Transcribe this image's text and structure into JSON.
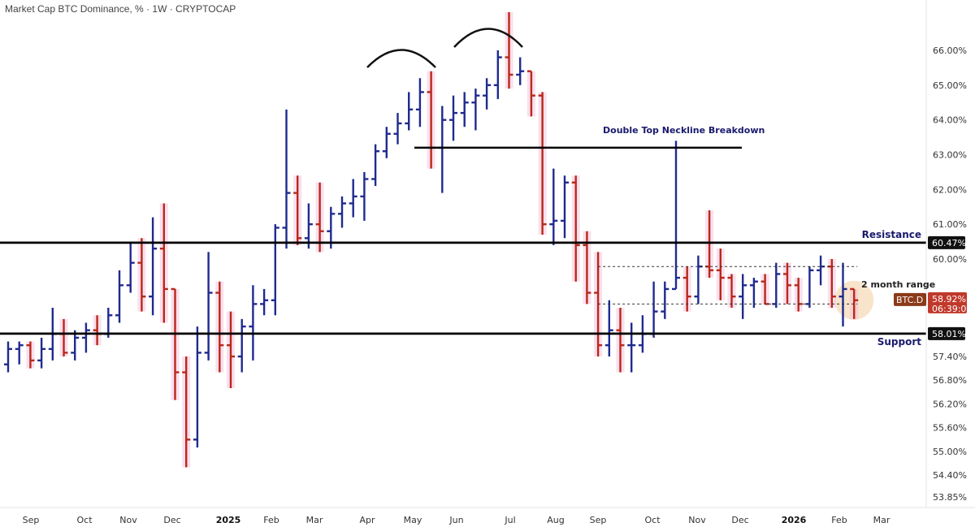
{
  "header": {
    "title": "Market Cap BTC Dominance, % · 1W · CRYPTOCAP",
    "unit_button": "%"
  },
  "colors": {
    "up": "#1f2a8f",
    "down": "#b8281a",
    "down_glow": "#f4b8d8",
    "level_line": "#000000",
    "annot_text": "#1a1a6e",
    "current_bg": "#c0392b",
    "symbol_bg": "#8b3a1a",
    "highlight": "#f5d9b5"
  },
  "chart_data": {
    "type": "ohlc",
    "title": "Market Cap BTC Dominance, % · 1W · CRYPTOCAP",
    "y_unit": "%",
    "ylim": [
      53.6,
      66.6
    ],
    "y_ticks": [
      "66.00%",
      "65.00%",
      "64.00%",
      "63.00%",
      "62.00%",
      "61.00%",
      "60.00%",
      "57.40%",
      "56.80%",
      "56.20%",
      "55.60%",
      "55.00%",
      "54.40%",
      "53.85%"
    ],
    "x_ticks": [
      {
        "label": "Sep",
        "bold": false
      },
      {
        "label": "Oct",
        "bold": false
      },
      {
        "label": "Nov",
        "bold": false
      },
      {
        "label": "Dec",
        "bold": false
      },
      {
        "label": "2025",
        "bold": true
      },
      {
        "label": "Feb",
        "bold": false
      },
      {
        "label": "Mar",
        "bold": false
      },
      {
        "label": "Apr",
        "bold": false
      },
      {
        "label": "May",
        "bold": false
      },
      {
        "label": "Jun",
        "bold": false
      },
      {
        "label": "Jul",
        "bold": false
      },
      {
        "label": "Aug",
        "bold": false
      },
      {
        "label": "Sep",
        "bold": false
      },
      {
        "label": "Oct",
        "bold": false
      },
      {
        "label": "Nov",
        "bold": false
      },
      {
        "label": "Dec",
        "bold": false
      },
      {
        "label": "2026",
        "bold": true
      },
      {
        "label": "Feb",
        "bold": false
      },
      {
        "label": "Mar",
        "bold": false
      }
    ],
    "bars": [
      [
        57.2,
        57.8,
        57.0,
        57.6
      ],
      [
        57.6,
        57.8,
        57.2,
        57.7
      ],
      [
        57.7,
        57.8,
        57.1,
        57.3
      ],
      [
        57.3,
        57.9,
        57.1,
        57.6
      ],
      [
        57.6,
        58.7,
        57.3,
        58.0
      ],
      [
        58.0,
        58.4,
        57.4,
        57.5
      ],
      [
        57.5,
        58.1,
        57.3,
        57.9
      ],
      [
        57.9,
        58.3,
        57.5,
        58.1
      ],
      [
        58.1,
        58.5,
        57.7,
        58.0
      ],
      [
        58.0,
        58.7,
        57.9,
        58.5
      ],
      [
        58.5,
        59.7,
        58.3,
        59.3
      ],
      [
        59.3,
        60.5,
        59.1,
        59.9
      ],
      [
        59.9,
        60.6,
        58.6,
        59.0
      ],
      [
        59.0,
        61.2,
        58.5,
        60.3
      ],
      [
        60.3,
        61.6,
        58.3,
        59.2
      ],
      [
        59.2,
        59.2,
        56.3,
        57.0
      ],
      [
        57.0,
        57.4,
        54.6,
        55.3
      ],
      [
        55.3,
        58.2,
        55.1,
        57.5
      ],
      [
        57.5,
        60.2,
        57.3,
        59.1
      ],
      [
        59.1,
        59.4,
        57.0,
        57.7
      ],
      [
        57.7,
        58.6,
        56.6,
        57.4
      ],
      [
        57.4,
        58.4,
        57.0,
        58.2
      ],
      [
        58.2,
        59.3,
        57.3,
        58.8
      ],
      [
        58.8,
        59.2,
        58.5,
        58.9
      ],
      [
        58.9,
        61.0,
        58.5,
        60.9
      ],
      [
        60.9,
        64.3,
        60.3,
        61.9
      ],
      [
        61.9,
        62.4,
        60.4,
        60.6
      ],
      [
        60.6,
        61.6,
        60.3,
        61.0
      ],
      [
        61.0,
        62.2,
        60.2,
        60.8
      ],
      [
        60.8,
        61.5,
        60.3,
        61.3
      ],
      [
        61.3,
        61.8,
        60.9,
        61.6
      ],
      [
        61.6,
        62.3,
        61.2,
        61.8
      ],
      [
        61.8,
        62.5,
        61.1,
        62.3
      ],
      [
        62.3,
        63.3,
        62.1,
        63.1
      ],
      [
        63.1,
        63.8,
        62.9,
        63.6
      ],
      [
        63.6,
        64.2,
        63.3,
        63.9
      ],
      [
        63.9,
        64.8,
        63.7,
        64.3
      ],
      [
        64.3,
        65.2,
        63.8,
        64.8
      ],
      [
        64.8,
        65.4,
        62.6,
        63.2
      ],
      [
        63.2,
        64.4,
        61.9,
        64.0
      ],
      [
        64.0,
        64.7,
        63.4,
        64.2
      ],
      [
        64.2,
        64.8,
        63.8,
        64.5
      ],
      [
        64.5,
        64.9,
        63.7,
        64.7
      ],
      [
        64.7,
        65.2,
        64.3,
        65.0
      ],
      [
        65.0,
        66.0,
        64.6,
        65.8
      ],
      [
        65.8,
        66.1,
        64.9,
        65.3
      ],
      [
        65.3,
        65.8,
        65.0,
        65.4
      ],
      [
        65.4,
        65.4,
        64.1,
        64.7
      ],
      [
        64.7,
        64.8,
        60.7,
        61.0
      ],
      [
        61.0,
        62.6,
        60.4,
        61.1
      ],
      [
        61.1,
        62.4,
        60.6,
        62.2
      ],
      [
        62.2,
        62.4,
        59.4,
        60.4
      ],
      [
        60.4,
        60.8,
        58.8,
        59.1
      ],
      [
        59.1,
        60.2,
        57.4,
        57.7
      ],
      [
        57.7,
        58.9,
        57.4,
        58.1
      ],
      [
        58.1,
        58.7,
        57.0,
        57.7
      ],
      [
        57.7,
        58.3,
        57.0,
        57.7
      ],
      [
        57.7,
        58.5,
        57.5,
        58.0
      ],
      [
        58.0,
        59.4,
        57.9,
        58.6
      ],
      [
        58.6,
        59.4,
        58.4,
        59.2
      ],
      [
        59.2,
        63.4,
        59.2,
        59.5
      ],
      [
        59.5,
        59.8,
        58.6,
        59.0
      ],
      [
        59.0,
        60.1,
        58.8,
        59.8
      ],
      [
        59.8,
        61.4,
        59.5,
        59.7
      ],
      [
        59.7,
        60.3,
        58.9,
        59.5
      ],
      [
        59.5,
        59.6,
        58.7,
        59.0
      ],
      [
        59.0,
        59.6,
        58.4,
        59.3
      ],
      [
        59.3,
        59.5,
        58.7,
        59.4
      ],
      [
        59.4,
        59.6,
        58.8,
        58.8
      ],
      [
        58.8,
        59.9,
        58.7,
        59.6
      ],
      [
        59.6,
        59.9,
        58.8,
        59.3
      ],
      [
        59.3,
        59.5,
        58.6,
        58.8
      ],
      [
        58.8,
        59.8,
        58.7,
        59.7
      ],
      [
        59.7,
        60.1,
        59.3,
        59.8
      ],
      [
        59.8,
        60.0,
        58.7,
        59.0
      ],
      [
        59.0,
        59.9,
        58.2,
        59.2
      ],
      [
        59.2,
        59.2,
        58.4,
        58.9
      ]
    ],
    "levels": [
      {
        "name": "Resistance",
        "value": 60.47,
        "label": "60.47%"
      },
      {
        "name": "Support",
        "value": 58.01,
        "label": "58.01%"
      },
      {
        "name": "Double Top Neckline Breakdown",
        "value": 63.2
      }
    ],
    "range_lines": [
      59.8,
      58.8
    ],
    "current": {
      "symbol": "BTC.D",
      "value": "58.92%",
      "countdown": "06:39:04"
    }
  },
  "annotations": {
    "neckline": "Double Top Neckline Breakdown",
    "resistance": "Resistance",
    "support": "Support",
    "range": "2 month range"
  }
}
